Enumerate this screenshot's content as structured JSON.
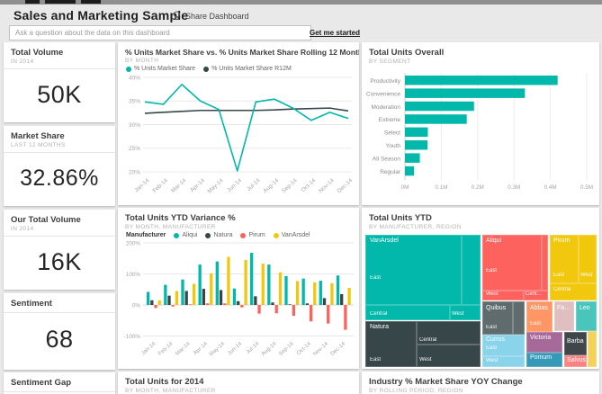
{
  "header": {
    "title": "Sales and Marketing Sample",
    "share_label": "Share Dashboard",
    "share_icon": "share-icon"
  },
  "search": {
    "placeholder": "Ask a question about the data on this dashboard",
    "link": "Get me started"
  },
  "colors": {
    "background": "#e9e9e9",
    "tile": "#ffffff",
    "accent": "#01B8AA",
    "grid": "#e8e8e8",
    "axis_text": "#a0a0a0"
  },
  "kpis": [
    {
      "title": "Total Volume",
      "subtitle": "IN 2014",
      "value": "50K"
    },
    {
      "title": "Market Share",
      "subtitle": "LAST 12 MONTHS",
      "value": "32.86%"
    },
    {
      "title": "Our Total Volume",
      "subtitle": "IN 2014",
      "value": "16K"
    },
    {
      "title": "Sentiment",
      "subtitle": "",
      "value": "68"
    },
    {
      "title": "Sentiment Gap",
      "subtitle": "",
      "value": ""
    }
  ],
  "bottom_tiles": [
    {
      "title": "Total Units for 2014",
      "subtitle": "BY MONTH, MANUFACTURER"
    },
    {
      "title": "Industry % Market Share YOY Change",
      "subtitle": "BY ROLLING PERIOD, REGION"
    }
  ],
  "chart_data": [
    {
      "type": "line",
      "title": "% Units Market Share vs. % Units Market Share Rolling 12 Months",
      "subtitle": "BY MONTH",
      "x": [
        "Jan-14",
        "Feb-14",
        "Mar-14",
        "Apr-14",
        "May-14",
        "Jun-14",
        "Jul-14",
        "Aug-14",
        "Sep-14",
        "Oct-14",
        "Nov-14",
        "Dec-14"
      ],
      "series": [
        {
          "name": "% Units Market Share",
          "color": "#01B8AA",
          "values": [
            34.8,
            34.3,
            38.5,
            35.0,
            33.2,
            20.2,
            34.8,
            35.4,
            33.5,
            30.9,
            32.6,
            31.3
          ]
        },
        {
          "name": "% Units Market Share R12M",
          "color": "#374649",
          "values": [
            32.4,
            32.6,
            32.8,
            33.0,
            33.0,
            33.0,
            33.0,
            33.1,
            33.3,
            33.4,
            33.5,
            32.9
          ]
        }
      ],
      "ylim": [
        20,
        40
      ],
      "yticks": [
        40,
        35,
        30,
        25,
        20
      ],
      "ytick_suffix": "%",
      "grid": true,
      "legend_position": "top"
    },
    {
      "type": "bar",
      "title": "Total Units Overall",
      "subtitle": "BY SEGMENT",
      "orientation": "horizontal",
      "categories": [
        "Productivity",
        "Convenience",
        "Moderation",
        "Extreme",
        "Select",
        "Youth",
        "All Season",
        "Regular"
      ],
      "values": [
        0.42,
        0.33,
        0.19,
        0.17,
        0.063,
        0.062,
        0.041,
        0.025
      ],
      "value_unit": "M",
      "xlim": [
        0,
        0.5
      ],
      "xticks": [
        "0M",
        "0.1M",
        "0.2M",
        "0.3M",
        "0.4M",
        "0.5M"
      ],
      "color": "#01B8AA",
      "grid": true
    },
    {
      "type": "grouped-bar",
      "title": "Total Units YTD Variance %",
      "subtitle": "BY MONTH, MANUFACTURER",
      "legend_label": "Manufacturer",
      "categories": [
        "Jan-14",
        "Feb-14",
        "Mar-14",
        "Apr-14",
        "May-14",
        "Jun-14",
        "Jul-14",
        "Aug-14",
        "Sep-14",
        "Oct-14",
        "Nov-14",
        "Dec-14"
      ],
      "series": [
        {
          "name": "Aliqui",
          "color": "#01B8AA",
          "values": [
            42,
            65,
            82,
            130,
            140,
            53,
            168,
            130,
            93,
            85,
            78,
            95
          ]
        },
        {
          "name": "Natura",
          "color": "#374649",
          "values": [
            15,
            30,
            45,
            52,
            48,
            12,
            28,
            8,
            2,
            5,
            22,
            35
          ]
        },
        {
          "name": "Pirum",
          "color": "#FD625E",
          "values": [
            -10,
            -5,
            2,
            5,
            5,
            -8,
            -28,
            -27,
            -35,
            -53,
            -60,
            -80
          ]
        },
        {
          "name": "VanArsdel",
          "color": "#F2C80F",
          "values": [
            15,
            45,
            68,
            102,
            155,
            145,
            133,
            105,
            77,
            73,
            70,
            55
          ]
        }
      ],
      "ylim": [
        -100,
        200
      ],
      "yticks": [
        200,
        100,
        0,
        -100
      ],
      "ytick_suffix": "%",
      "grid": true,
      "legend_position": "top"
    },
    {
      "type": "treemap",
      "title": "Total Units YTD",
      "subtitle": "BY MANUFACTURER, REGION",
      "manufacturers": [
        "VanArsdel",
        "Natura",
        "Aliqui",
        "Pirum",
        "Quibus",
        "Currus",
        "Abbas",
        "Victoria",
        "Pomum",
        "Fama",
        "Leo",
        "Barba",
        "Salvus"
      ],
      "cells": [
        [
          0,
          0,
          107,
          78,
          "#01B8AA"
        ],
        [
          107,
          0,
          21,
          78,
          "#01B8AA"
        ],
        [
          0,
          78,
          94,
          17,
          "#01B8AA"
        ],
        [
          94,
          78,
          34,
          17,
          "#01B8AA"
        ],
        [
          0,
          96,
          57,
          51,
          "#374649"
        ],
        [
          57,
          96,
          71,
          26,
          "#374649"
        ],
        [
          57,
          122,
          71,
          25,
          "#374649"
        ],
        [
          130,
          0,
          66,
          62,
          "#FD625E"
        ],
        [
          196,
          0,
          7,
          62,
          "#FD625E"
        ],
        [
          130,
          62,
          46,
          11,
          "#FD625E"
        ],
        [
          176,
          62,
          27,
          11,
          "#FD625E"
        ],
        [
          205,
          0,
          32,
          54,
          "#F2C80F"
        ],
        [
          237,
          0,
          20,
          54,
          "#F2C80F"
        ],
        [
          205,
          54,
          52,
          19,
          "#F2C80F"
        ],
        [
          130,
          74,
          34,
          37,
          "#5F6B6D"
        ],
        [
          164,
          74,
          13,
          37,
          "#5F6B6D"
        ],
        [
          179,
          74,
          29,
          34,
          "#FE9666"
        ],
        [
          210,
          74,
          22,
          33,
          "#DFBFBF"
        ],
        [
          234,
          74,
          23,
          33,
          "#4AC5BB"
        ],
        [
          130,
          111,
          47,
          24,
          "#8AD4EB"
        ],
        [
          130,
          135,
          47,
          12,
          "#8AD4EB"
        ],
        [
          179,
          108,
          40,
          23,
          "#A66999"
        ],
        [
          179,
          131,
          40,
          16,
          "#3599B8"
        ],
        [
          221,
          108,
          25,
          26,
          "#3F474A"
        ],
        [
          221,
          134,
          25,
          13,
          "#FB8281"
        ],
        [
          247,
          107,
          10,
          40,
          "#F4D25A"
        ]
      ],
      "labels": [
        [
          "VanArsdel",
          5,
          3,
          "n"
        ],
        [
          "East",
          5,
          45,
          "r"
        ],
        [
          "Central",
          5,
          85,
          "r"
        ],
        [
          "West",
          96,
          85,
          "r"
        ],
        [
          "Natura",
          5,
          99,
          "n"
        ],
        [
          "East",
          5,
          136,
          "r"
        ],
        [
          "Central",
          60,
          114,
          "r"
        ],
        [
          "West",
          60,
          136,
          "r"
        ],
        [
          "Aliqui",
          134,
          3,
          "n"
        ],
        [
          "East",
          134,
          37,
          "r"
        ],
        [
          "West",
          134,
          63,
          "r"
        ],
        [
          "Cent...",
          178,
          63,
          "r"
        ],
        [
          "Pirum",
          209,
          3,
          "n"
        ],
        [
          "East",
          209,
          42,
          "r"
        ],
        [
          "West",
          239,
          42,
          "r"
        ],
        [
          "Central",
          209,
          58,
          "r"
        ],
        [
          "Quibus",
          134,
          78,
          "n"
        ],
        [
          "East",
          134,
          100,
          "r"
        ],
        [
          "Abbas",
          183,
          78,
          "n"
        ],
        [
          "East",
          183,
          96,
          "r"
        ],
        [
          "Fa...",
          213,
          78,
          "n"
        ],
        [
          "Leo",
          238,
          78,
          "n"
        ],
        [
          "Currus",
          134,
          113,
          "n"
        ],
        [
          "East",
          134,
          123,
          "r"
        ],
        [
          "West",
          134,
          137,
          "r"
        ],
        [
          "Victoria",
          183,
          111,
          "n"
        ],
        [
          "Pomum",
          183,
          133,
          "n"
        ],
        [
          "Barba",
          224,
          115,
          "n"
        ],
        [
          "Salvus",
          224,
          136,
          "n"
        ]
      ]
    }
  ]
}
